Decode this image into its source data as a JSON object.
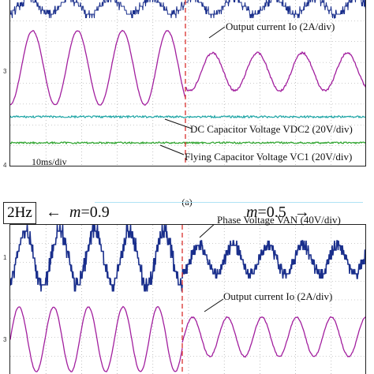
{
  "caption": "(a)",
  "panel_a": {
    "timebase": "10ms/div",
    "labels": {
      "output_current": "Output current Io (2A/div)",
      "dc_cap": "DC Capacitor Voltage VDC2 (20V/div)",
      "flying_cap": "Flying Capacitor Voltage VC1 (20V/div)"
    },
    "channel_markers": [
      "3",
      "4"
    ]
  },
  "panel_b": {
    "frequency": "2Hz",
    "m_left": "0.9",
    "m_right": "0.5",
    "labels": {
      "phase_voltage": "Phase Voltage VAN (40V/div)",
      "output_current": "Output current Io (2A/div)"
    },
    "channel_markers": [
      "1",
      "3"
    ]
  },
  "colors": {
    "current": "#a21f9e",
    "phase_voltage": "#1a2f8c",
    "dc_cap": "#1aa3a3",
    "flying_cap": "#2aa22a",
    "divider": "#d9302c",
    "grid": "#9a9a9a"
  },
  "chart_data": [
    {
      "type": "line",
      "title": "",
      "series": [
        {
          "name": "Output current Io",
          "cycles_before_step": 4,
          "cycles_after_step": 4,
          "amplitude_before_div": 1.0,
          "amplitude_after_div": 0.5,
          "units": "2A/div"
        },
        {
          "name": "DC Capacitor Voltage VDC2",
          "value": "flat",
          "units": "20V/div"
        },
        {
          "name": "Flying Capacitor Voltage VC1",
          "value": "flat",
          "units": "20V/div"
        }
      ],
      "xlabel": "10ms/div",
      "grid": true
    },
    {
      "type": "line",
      "title": "2Hz",
      "series": [
        {
          "name": "Phase Voltage VAN",
          "modulation_before": 0.9,
          "modulation_after": 0.5,
          "units": "40V/div"
        },
        {
          "name": "Output current Io",
          "modulation_before": 0.9,
          "modulation_after": 0.5,
          "units": "2A/div"
        }
      ],
      "grid": true
    }
  ]
}
